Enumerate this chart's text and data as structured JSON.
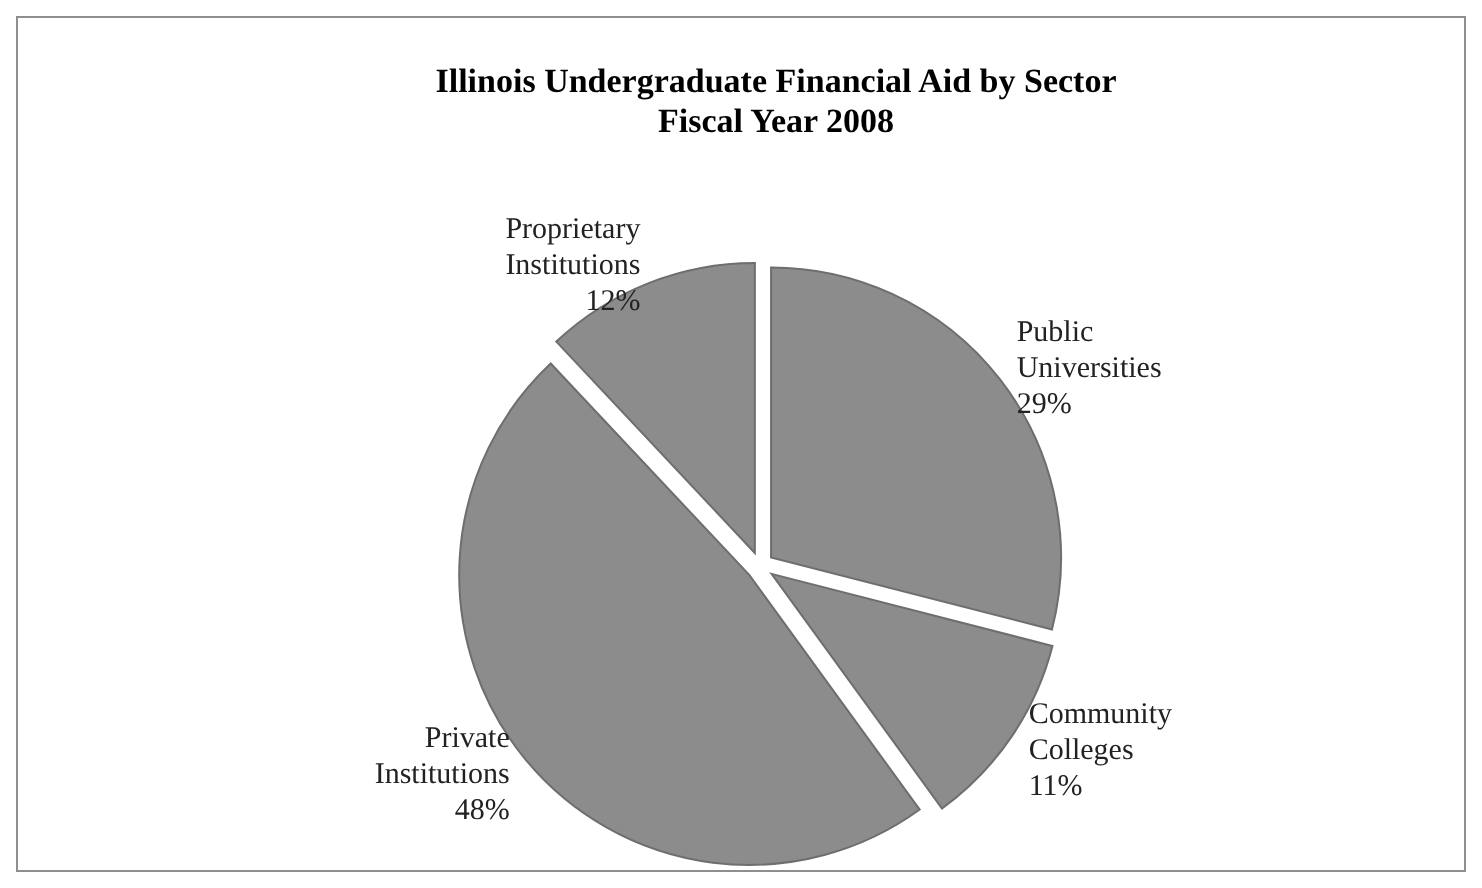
{
  "chart_data": {
    "type": "pie",
    "title": "Illinois Undergraduate Financial Aid by Sector\nFiscal Year 2008",
    "categories": [
      "Public Universities",
      "Community Colleges",
      "Private Institutions",
      "Proprietary Institutions"
    ],
    "values": [
      29,
      11,
      48,
      12
    ],
    "colors": [
      "#8c8c8c",
      "#8c8c8c",
      "#8c8c8c",
      "#8c8c8c"
    ],
    "value_labels": [
      "29%",
      "11%",
      "48%",
      "12%"
    ],
    "legend": false
  }
}
